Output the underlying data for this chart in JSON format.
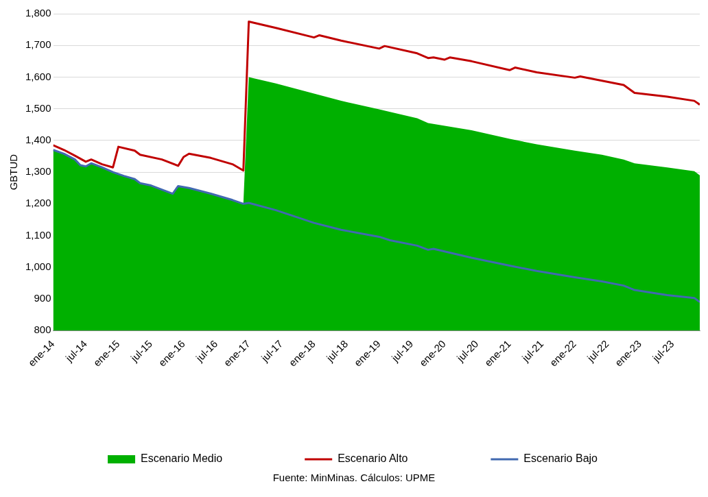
{
  "chart_data": {
    "type": "line",
    "ylabel": "GBTUD",
    "xlim": [
      "2014-01",
      "2023-12"
    ],
    "ylim": [
      800,
      1800
    ],
    "yticks": [
      {
        "value": 800,
        "label": "800"
      },
      {
        "value": 900,
        "label": "900"
      },
      {
        "value": 1000,
        "label": "1,000"
      },
      {
        "value": 1100,
        "label": "1,100"
      },
      {
        "value": 1200,
        "label": "1,200"
      },
      {
        "value": 1300,
        "label": "1,300"
      },
      {
        "value": 1400,
        "label": "1,400"
      },
      {
        "value": 1500,
        "label": "1,500"
      },
      {
        "value": 1600,
        "label": "1,600"
      },
      {
        "value": 1700,
        "label": "1,700"
      },
      {
        "value": 1800,
        "label": "1,800"
      }
    ],
    "xticks": [
      {
        "value": "2014-01",
        "label": "ene-14"
      },
      {
        "value": "2014-07",
        "label": "jul-14"
      },
      {
        "value": "2015-01",
        "label": "ene-15"
      },
      {
        "value": "2015-07",
        "label": "jul-15"
      },
      {
        "value": "2016-01",
        "label": "ene-16"
      },
      {
        "value": "2016-07",
        "label": "jul-16"
      },
      {
        "value": "2017-01",
        "label": "ene-17"
      },
      {
        "value": "2017-07",
        "label": "jul-17"
      },
      {
        "value": "2018-01",
        "label": "ene-18"
      },
      {
        "value": "2018-07",
        "label": "jul-18"
      },
      {
        "value": "2019-01",
        "label": "ene-19"
      },
      {
        "value": "2019-07",
        "label": "jul-19"
      },
      {
        "value": "2020-01",
        "label": "ene-20"
      },
      {
        "value": "2020-07",
        "label": "jul-20"
      },
      {
        "value": "2021-01",
        "label": "ene-21"
      },
      {
        "value": "2021-07",
        "label": "jul-21"
      },
      {
        "value": "2022-01",
        "label": "ene-22"
      },
      {
        "value": "2022-07",
        "label": "jul-22"
      },
      {
        "value": "2023-01",
        "label": "ene-23"
      },
      {
        "value": "2023-07",
        "label": "jul-23"
      }
    ],
    "grid": "y",
    "legend": "bottom",
    "annotations": [
      "Fuente: MinMinas. Cálculos: UPME"
    ],
    "series": [
      {
        "name": "Escenario Medio",
        "type": "area",
        "color": "#00b000",
        "x": [
          "2014-01",
          "2014-03",
          "2014-05",
          "2014-06",
          "2014-07",
          "2014-08",
          "2014-10",
          "2014-12",
          "2015-02",
          "2015-04",
          "2015-05",
          "2015-07",
          "2015-09",
          "2015-11",
          "2015-12",
          "2016-02",
          "2016-06",
          "2016-10",
          "2016-12",
          "2017-01",
          "2017-06",
          "2018-01",
          "2018-06",
          "2019-01",
          "2019-03",
          "2019-08",
          "2019-10",
          "2020-06",
          "2021-01",
          "2021-06",
          "2022-01",
          "2022-06",
          "2022-10",
          "2022-12",
          "2023-06",
          "2023-11",
          "2023-12"
        ],
        "values": [
          1370,
          1358,
          1340,
          1322,
          1318,
          1328,
          1315,
          1300,
          1288,
          1278,
          1265,
          1258,
          1245,
          1232,
          1256,
          1250,
          1232,
          1212,
          1200,
          1600,
          1580,
          1548,
          1525,
          1498,
          1490,
          1470,
          1455,
          1432,
          1405,
          1388,
          1368,
          1355,
          1340,
          1328,
          1315,
          1303,
          1290
        ]
      },
      {
        "name": "Escenario Alto",
        "type": "line",
        "color": "#c00000",
        "x": [
          "2014-01",
          "2014-03",
          "2014-05",
          "2014-07",
          "2014-08",
          "2014-10",
          "2014-12",
          "2015-01",
          "2015-04",
          "2015-05",
          "2015-09",
          "2015-12",
          "2016-01",
          "2016-02",
          "2016-06",
          "2016-10",
          "2016-12",
          "2017-01",
          "2017-06",
          "2018-01",
          "2018-02",
          "2018-06",
          "2019-01",
          "2019-02",
          "2019-08",
          "2019-10",
          "2019-11",
          "2020-01",
          "2020-02",
          "2020-06",
          "2021-01",
          "2021-02",
          "2021-06",
          "2022-01",
          "2022-02",
          "2022-10",
          "2022-12",
          "2023-06",
          "2023-11",
          "2023-12"
        ],
        "values": [
          1385,
          1370,
          1352,
          1333,
          1340,
          1325,
          1315,
          1380,
          1368,
          1355,
          1340,
          1320,
          1348,
          1358,
          1345,
          1325,
          1305,
          1775,
          1755,
          1725,
          1732,
          1715,
          1690,
          1698,
          1675,
          1660,
          1662,
          1655,
          1662,
          1650,
          1622,
          1630,
          1615,
          1598,
          1602,
          1575,
          1550,
          1538,
          1525,
          1513
        ]
      },
      {
        "name": "Escenario Bajo",
        "type": "line",
        "color": "#4169b0",
        "x": [
          "2014-01",
          "2014-03",
          "2014-05",
          "2014-06",
          "2014-07",
          "2014-08",
          "2014-10",
          "2014-12",
          "2015-02",
          "2015-04",
          "2015-05",
          "2015-07",
          "2015-09",
          "2015-11",
          "2015-12",
          "2016-02",
          "2016-06",
          "2016-10",
          "2016-12",
          "2017-01",
          "2017-06",
          "2018-01",
          "2018-06",
          "2019-01",
          "2019-03",
          "2019-08",
          "2019-10",
          "2019-11",
          "2020-06",
          "2021-01",
          "2021-06",
          "2022-01",
          "2022-06",
          "2022-10",
          "2022-12",
          "2023-06",
          "2023-11",
          "2023-12"
        ],
        "values": [
          1370,
          1358,
          1340,
          1322,
          1318,
          1328,
          1315,
          1300,
          1288,
          1278,
          1265,
          1258,
          1245,
          1232,
          1256,
          1250,
          1232,
          1212,
          1200,
          1203,
          1180,
          1140,
          1118,
          1096,
          1085,
          1068,
          1055,
          1058,
          1030,
          1005,
          988,
          968,
          955,
          942,
          928,
          912,
          903,
          890
        ]
      }
    ]
  }
}
